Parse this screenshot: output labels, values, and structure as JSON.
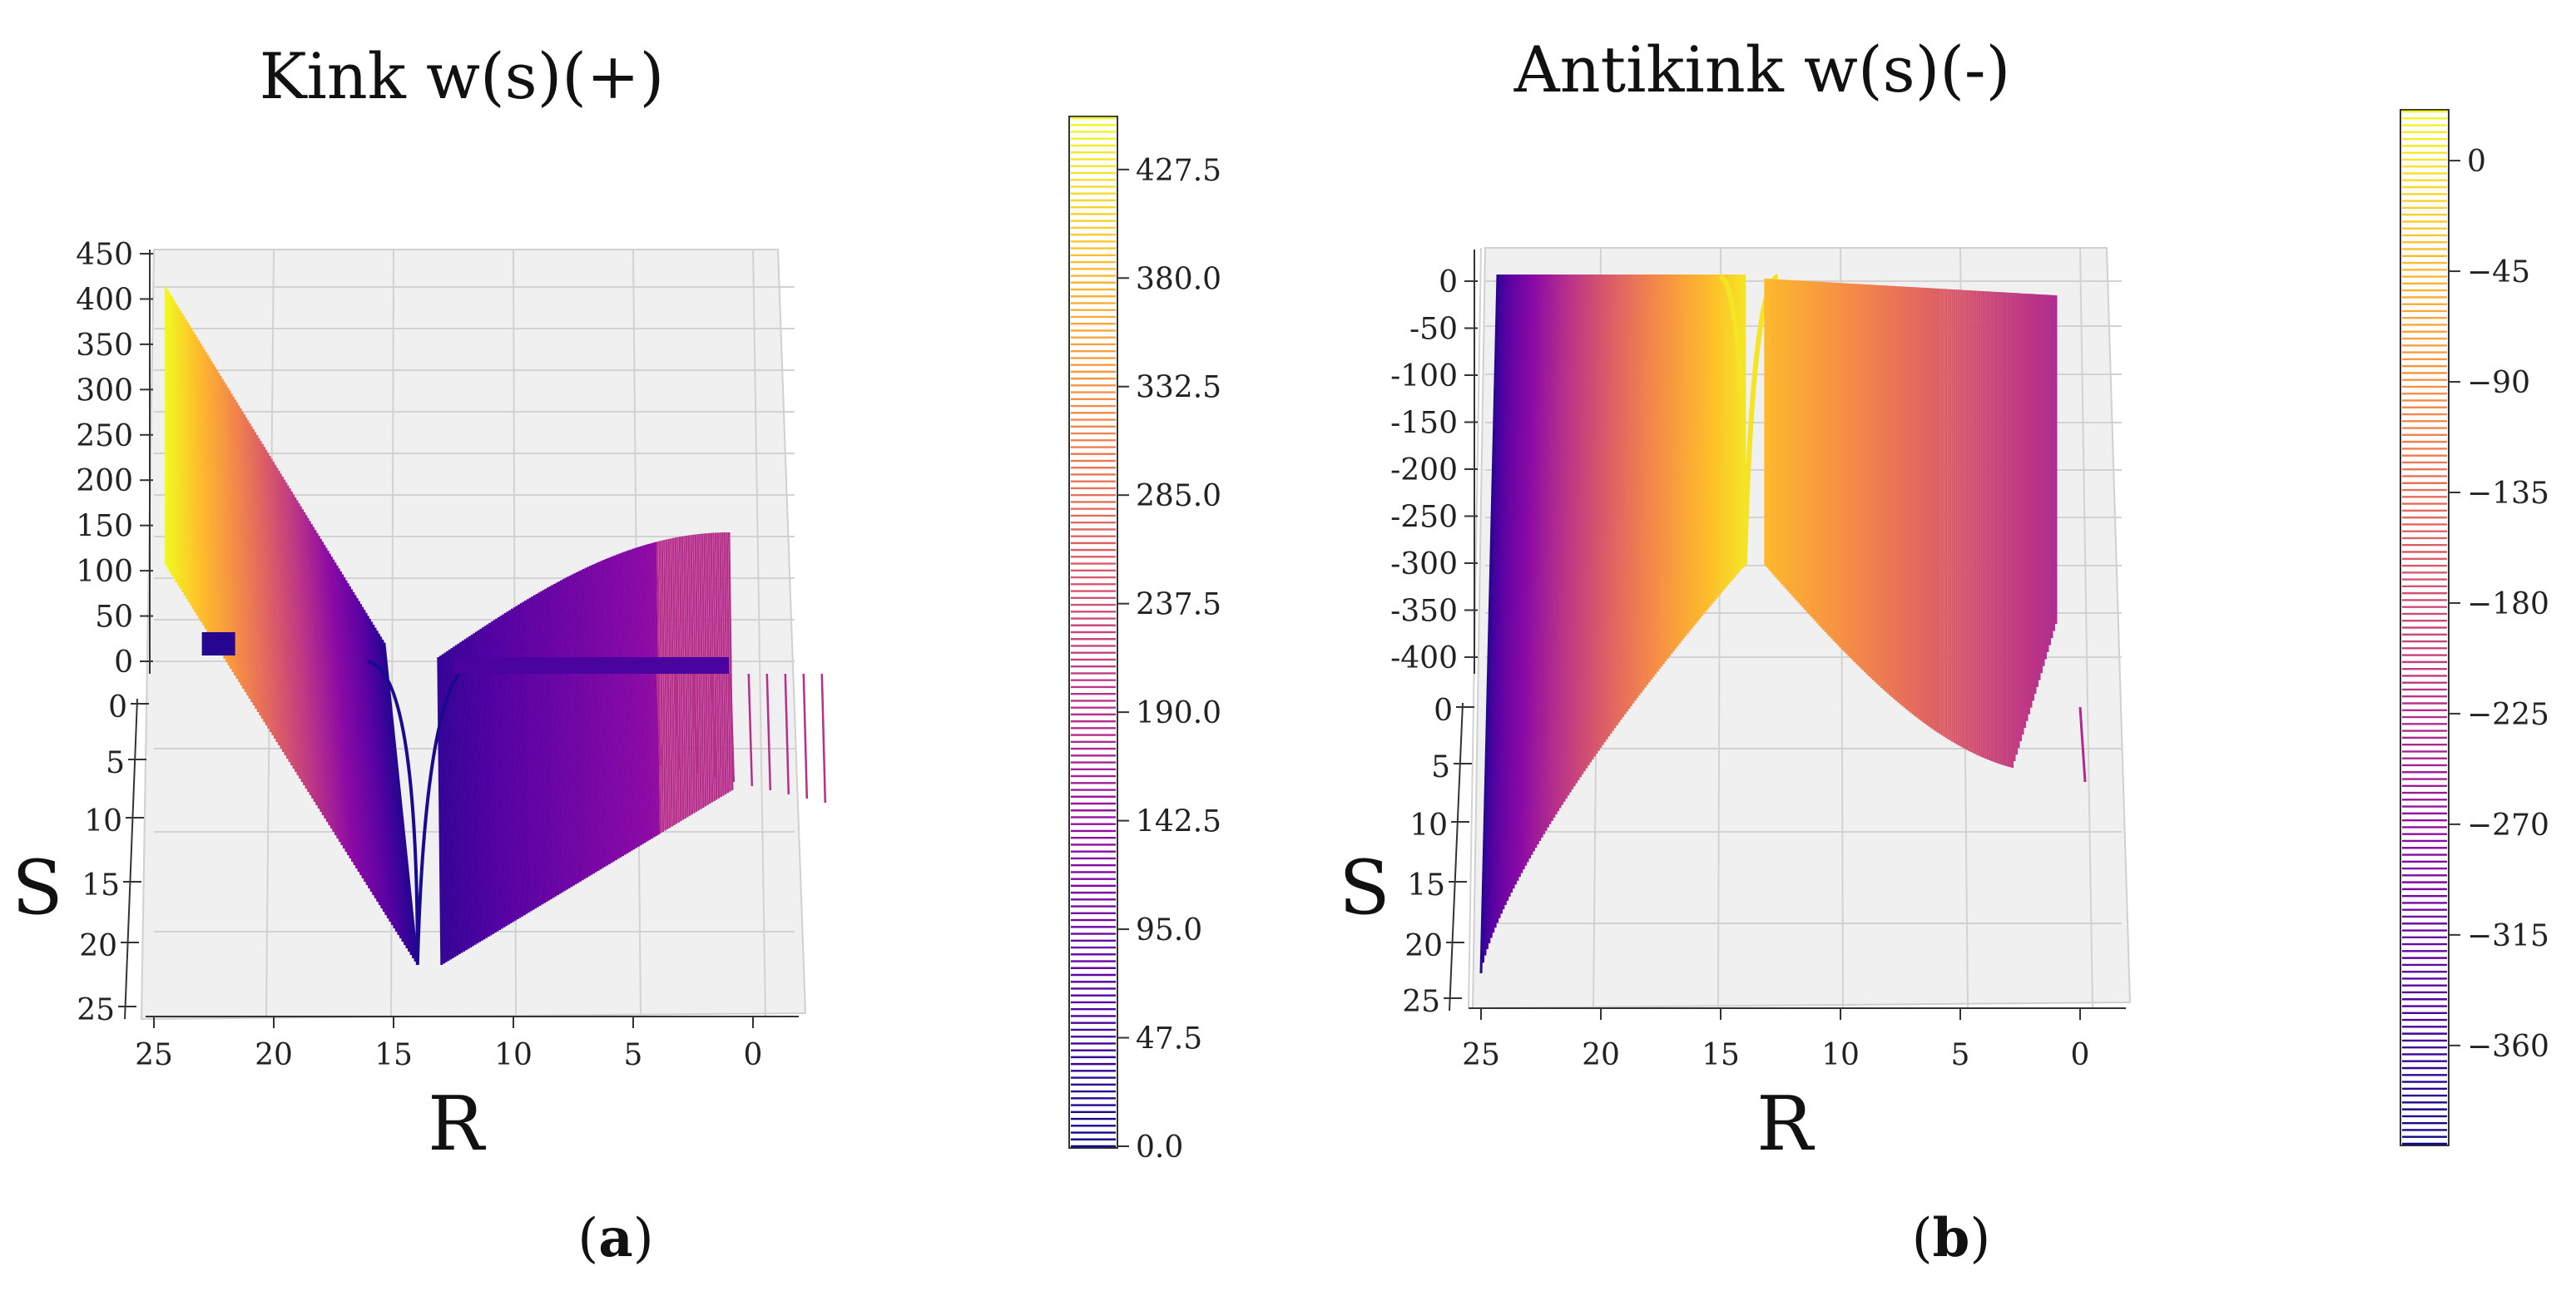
{
  "chart_data": [
    {
      "type": "surface3d",
      "panel_label": "a",
      "title": "Kink w(s)(+)",
      "xlabel": "R",
      "ylabel": "S",
      "zlabel": "",
      "x_ticks": [
        "25",
        "20",
        "15",
        "10",
        "5",
        "0"
      ],
      "y_ticks": [
        "0",
        "5",
        "10",
        "15",
        "20",
        "25"
      ],
      "z_ticks": [
        "0",
        "50",
        "100",
        "150",
        "200",
        "250",
        "300",
        "350",
        "400",
        "450"
      ],
      "xlim": [
        0,
        25
      ],
      "ylim": [
        0,
        25
      ],
      "zlim": [
        0,
        450
      ],
      "kink_center_R": 14,
      "colormap": "plasma",
      "colorbar": {
        "ticks": [
          "0.0",
          "47.5",
          "95.0",
          "142.5",
          "190.0",
          "237.5",
          "285.0",
          "332.5",
          "380.0",
          "427.5"
        ],
        "range": [
          0,
          450
        ]
      }
    },
    {
      "type": "surface3d",
      "panel_label": "b",
      "title": "Antikink w(s)(-)",
      "xlabel": "R",
      "ylabel": "S",
      "zlabel": "",
      "x_ticks": [
        "25",
        "20",
        "15",
        "10",
        "5",
        "0"
      ],
      "y_ticks": [
        "0",
        "5",
        "10",
        "15",
        "20",
        "25"
      ],
      "z_ticks": [
        "0",
        "-50",
        "-100",
        "-150",
        "-200",
        "-250",
        "-300",
        "-350",
        "-400"
      ],
      "xlim": [
        0,
        25
      ],
      "ylim": [
        0,
        25
      ],
      "zlim": [
        -400,
        0
      ],
      "kink_center_R": 14,
      "colormap": "plasma",
      "colorbar": {
        "ticks": [
          "0",
          "−45",
          "−90",
          "−135",
          "−180",
          "−225",
          "−270",
          "−315",
          "−360"
        ],
        "range": [
          -400,
          20
        ]
      }
    }
  ]
}
